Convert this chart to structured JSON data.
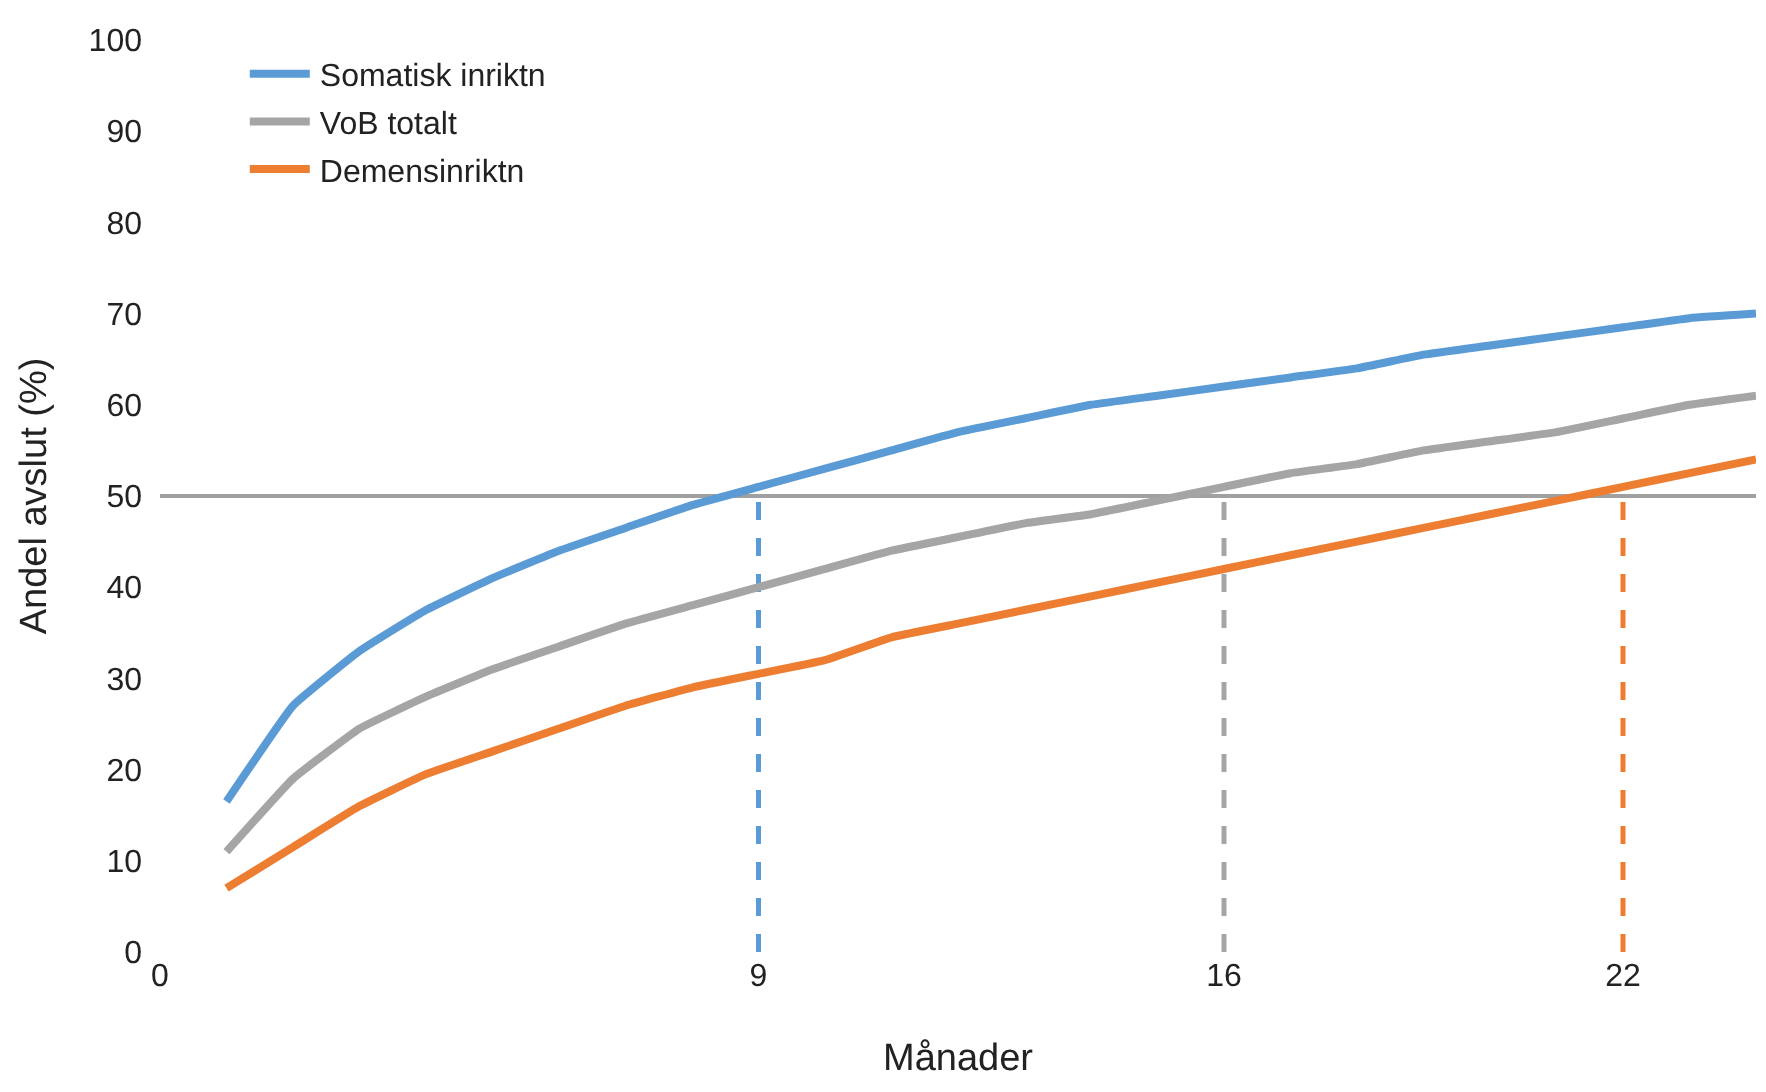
{
  "chart_data": {
    "type": "line",
    "xlabel": "Månader",
    "ylabel": "Andel avslut (%)",
    "x": [
      1,
      2,
      3,
      4,
      5,
      6,
      7,
      8,
      9,
      10,
      11,
      12,
      13,
      14,
      15,
      16,
      17,
      18,
      19,
      20,
      21,
      22,
      23,
      24
    ],
    "series": [
      {
        "name": "Somatisk inriktn",
        "color": "#5b9bd5",
        "values": [
          16.5,
          27,
          33,
          37.5,
          41,
          44,
          46.5,
          49,
          51,
          53,
          55,
          57,
          58.5,
          60,
          61,
          62,
          63,
          64,
          65.5,
          66.5,
          67.5,
          68.5,
          69.5,
          70
        ]
      },
      {
        "name": "VoB totalt",
        "color": "#a5a5a5",
        "values": [
          11,
          19,
          24.5,
          28,
          31,
          33.5,
          36,
          38,
          40,
          42,
          44,
          45.5,
          47,
          48,
          49.5,
          51,
          52.5,
          53.5,
          55,
          56,
          57,
          58.5,
          60,
          61
        ]
      },
      {
        "name": "Demensinriktn",
        "color": "#ed7d31",
        "values": [
          7,
          11.5,
          16,
          19.5,
          22,
          24.5,
          27,
          29,
          30.5,
          32,
          34.5,
          36,
          37.5,
          39,
          40.5,
          42,
          43.5,
          45,
          46.5,
          48,
          49.5,
          51,
          52.5,
          54
        ]
      }
    ],
    "xlim": [
      0,
      24
    ],
    "xticks": [
      0,
      9,
      16,
      22
    ],
    "ylim": [
      0,
      100
    ],
    "yticks": [
      0,
      10,
      20,
      30,
      40,
      50,
      60,
      70,
      80,
      90,
      100
    ],
    "ref_lines": [
      {
        "axis": "y",
        "value": 50,
        "color": "#a0a0a0",
        "line_style": "solid"
      },
      {
        "axis": "x",
        "value": 9,
        "color": "#5b9bd5",
        "line_style": "dashed"
      },
      {
        "axis": "x",
        "value": 16,
        "color": "#a5a5a5",
        "line_style": "dashed"
      },
      {
        "axis": "x",
        "value": 22,
        "color": "#ed7d31",
        "line_style": "dashed"
      }
    ],
    "grid": false,
    "legend": "top left",
    "marker": "none",
    "line_style": "solid"
  }
}
